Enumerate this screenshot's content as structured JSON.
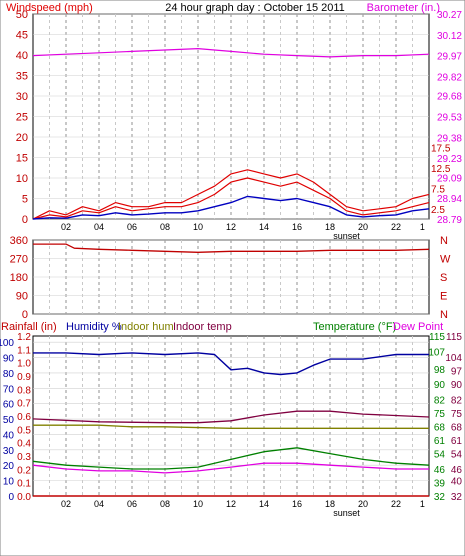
{
  "header": {
    "left_title": "Windspeed (mph)",
    "center_title": "24 hour graph day : October 15 2011",
    "right_title": "Barometer (in.)"
  },
  "colors": {
    "wind": "#e00000",
    "gust": "#e00000",
    "avg_wind": "#0000c0",
    "barometer": "#e000e0",
    "direction": "#c00000",
    "humidity": "#0000a0",
    "indoor_hum": "#808000",
    "indoor_temp": "#800040",
    "temperature": "#008000",
    "dew_point": "#e000e0",
    "rainfall": "#c00000",
    "frame": "#000000",
    "grid": "#a0a0a0"
  },
  "chart_data": [
    {
      "id": "wind_baro",
      "type": "line",
      "title": "24 hour graph day : October 15 2011",
      "ylabel_left": "Windspeed (mph)",
      "ylabel_right": "Barometer (in.)",
      "x_ticks": [
        "02",
        "04",
        "06",
        "08",
        "10",
        "12",
        "14",
        "16",
        "18",
        "20",
        "22"
      ],
      "x_marker_label": "sunset",
      "y_left_ticks": [
        0,
        2.5,
        5,
        7.5,
        10,
        12.5,
        15,
        17.5,
        20,
        25,
        30,
        35,
        40,
        45,
        50
      ],
      "y_right_ticks": [
        "30.27",
        "30.12",
        "29.97",
        "29.82",
        "29.68",
        "29.53",
        "29.38",
        "29.23",
        "29.09",
        "28.94",
        "28.79"
      ],
      "ylim_left": [
        0,
        50
      ],
      "ylim_right": [
        28.79,
        30.27
      ],
      "series": [
        {
          "name": "Windspeed (mph)",
          "x": [
            0,
            1,
            2,
            3,
            4,
            5,
            6,
            7,
            8,
            9,
            10,
            11,
            12,
            13,
            14,
            15,
            16,
            17,
            18,
            19,
            20,
            21,
            22,
            23,
            24
          ],
          "values": [
            0,
            1,
            0.5,
            2,
            1.5,
            3,
            2,
            2.5,
            3,
            3,
            4,
            6,
            9,
            10,
            9,
            8,
            9,
            7,
            5,
            2,
            1,
            1.5,
            2,
            3,
            4
          ]
        },
        {
          "name": "Gust",
          "x": [
            0,
            1,
            2,
            3,
            4,
            5,
            6,
            7,
            8,
            9,
            10,
            11,
            12,
            13,
            14,
            15,
            16,
            17,
            18,
            19,
            20,
            21,
            22,
            23,
            24
          ],
          "values": [
            0,
            2,
            1,
            3,
            2,
            4,
            3,
            3,
            4,
            4,
            6,
            8,
            11,
            12,
            11,
            10,
            11,
            9,
            6,
            3,
            2,
            2.5,
            3,
            5,
            6
          ]
        },
        {
          "name": "Average wind",
          "x": [
            0,
            1,
            2,
            3,
            4,
            5,
            6,
            7,
            8,
            9,
            10,
            11,
            12,
            13,
            14,
            15,
            16,
            17,
            18,
            19,
            20,
            21,
            22,
            23,
            24
          ],
          "values": [
            0,
            0.3,
            0.2,
            1,
            0.8,
            1.5,
            1,
            1.2,
            1.5,
            1.5,
            2,
            3,
            4,
            5.5,
            5,
            4.5,
            5,
            4,
            3,
            1,
            0.5,
            0.8,
            1,
            2,
            2.5
          ]
        },
        {
          "name": "Barometer (in.)",
          "axis": "right",
          "x": [
            0,
            2,
            4,
            6,
            8,
            10,
            12,
            14,
            16,
            18,
            20,
            22,
            24
          ],
          "values": [
            29.97,
            29.98,
            29.99,
            30.0,
            30.01,
            30.02,
            30.0,
            29.98,
            29.97,
            29.96,
            29.97,
            29.97,
            29.98
          ]
        }
      ]
    },
    {
      "id": "direction",
      "type": "line",
      "y_left_ticks": [
        0,
        90,
        180,
        270,
        360
      ],
      "y_right_ticks": [
        "N",
        "W",
        "S",
        "E",
        "N"
      ],
      "ylim": [
        0,
        360
      ],
      "series": [
        {
          "name": "Wind direction",
          "x": [
            0,
            2,
            2.5,
            4,
            6,
            8,
            10,
            12,
            14,
            16,
            18,
            20,
            22,
            24
          ],
          "values": [
            340,
            340,
            320,
            315,
            310,
            305,
            300,
            305,
            305,
            305,
            310,
            310,
            310,
            315
          ]
        }
      ]
    },
    {
      "id": "temp_hum",
      "type": "line",
      "legend": [
        "Rainfall (in)",
        "Humidity %",
        "Indoor hum",
        "Indoor temp",
        "Temperature (°F)",
        "Dew Point"
      ],
      "rainfall_ticks": [
        0.0,
        0.1,
        0.2,
        0.3,
        0.4,
        0.5,
        0.6,
        0.7,
        0.8,
        0.9,
        1.0,
        1.1,
        1.2
      ],
      "humidity_ticks": [
        0,
        10,
        20,
        30,
        40,
        50,
        60,
        70,
        80,
        90,
        100
      ],
      "temp_ticks_outer": [
        32,
        40,
        46,
        54,
        61,
        68,
        75,
        82,
        90,
        97,
        104,
        115
      ],
      "temp_ticks_inner": [
        32,
        39,
        46,
        54,
        61,
        68,
        75,
        82,
        90,
        98,
        107,
        115
      ],
      "ylim_humidity": [
        0,
        104
      ],
      "ylim_temp": [
        32,
        115
      ],
      "series": [
        {
          "name": "Humidity %",
          "x": [
            0,
            2,
            4,
            6,
            8,
            10,
            11,
            12,
            13,
            14,
            15,
            16,
            17,
            18,
            20,
            22,
            24
          ],
          "values": [
            93,
            93,
            92,
            93,
            92,
            93,
            92,
            82,
            83,
            80,
            79,
            80,
            85,
            89,
            89,
            92,
            92
          ]
        },
        {
          "name": "Indoor hum",
          "x": [
            0,
            4,
            6,
            8,
            12,
            14,
            16,
            20,
            24
          ],
          "values": [
            46,
            46,
            45,
            45,
            44,
            44,
            44,
            44,
            44
          ]
        },
        {
          "name": "Indoor temp",
          "x": [
            0,
            4,
            8,
            10,
            12,
            14,
            16,
            18,
            20,
            24
          ],
          "values": [
            72,
            70.5,
            70,
            70,
            71,
            74,
            76,
            76,
            74.5,
            73
          ]
        },
        {
          "name": "Temperature (°F)",
          "x": [
            0,
            2,
            4,
            6,
            8,
            10,
            12,
            14,
            16,
            18,
            20,
            22,
            24
          ],
          "values": [
            50,
            48,
            47,
            46,
            46,
            47,
            51,
            55,
            57,
            54,
            51,
            49,
            48
          ]
        },
        {
          "name": "Dew Point",
          "x": [
            0,
            2,
            4,
            6,
            8,
            10,
            12,
            14,
            16,
            18,
            20,
            22,
            24
          ],
          "values": [
            48,
            46,
            45,
            45,
            44,
            45,
            47,
            49,
            49,
            48,
            47,
            46,
            46
          ]
        },
        {
          "name": "Rainfall (in)",
          "x": [
            0,
            24
          ],
          "values": [
            0.0,
            0.0
          ]
        }
      ]
    }
  ]
}
